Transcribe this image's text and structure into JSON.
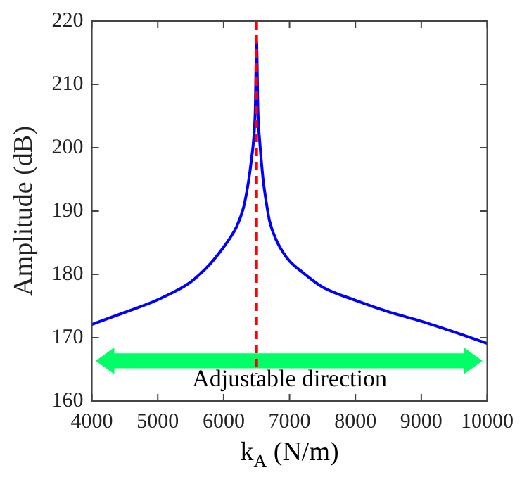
{
  "chart_data": {
    "type": "line",
    "xlabel": "k$_{A}$ (N/m)",
    "ylabel": "Amplitude (dB)",
    "series": [
      {
        "color": "#0000ff",
        "x": [
          4000,
          4500,
          5000,
          5500,
          5800,
          6000,
          6100,
          6200,
          6300,
          6350,
          6400,
          6420,
          6450,
          6480,
          6500,
          6520,
          6550,
          6580,
          6600,
          6650,
          6700,
          6800,
          6900,
          7000,
          7200,
          7500,
          8000,
          8500,
          9000,
          9500,
          10000
        ],
        "values": [
          172.1,
          174.0,
          176.0,
          178.8,
          181.7,
          184.3,
          185.8,
          187.6,
          190.5,
          193.0,
          196.3,
          198.0,
          200.7,
          206.0,
          216.7,
          206.0,
          200.7,
          197.0,
          194.9,
          191.2,
          188.3,
          185.4,
          183.5,
          182.1,
          180.3,
          178.0,
          175.9,
          174.1,
          172.6,
          170.9,
          169.1
        ]
      }
    ],
    "xlim": [
      4000,
      10000
    ],
    "xticks": [
      4000,
      5000,
      6000,
      7000,
      8000,
      9000,
      10000
    ],
    "ylim": [
      160,
      220
    ],
    "yticks": [
      160,
      170,
      180,
      190,
      200,
      210,
      220
    ],
    "ref_lines": [
      {
        "axis": "x",
        "value": 6500,
        "color": "#ff0000",
        "line_style": "dashed"
      }
    ],
    "annotations": [
      "Adjustable direction"
    ],
    "legend": false
  }
}
